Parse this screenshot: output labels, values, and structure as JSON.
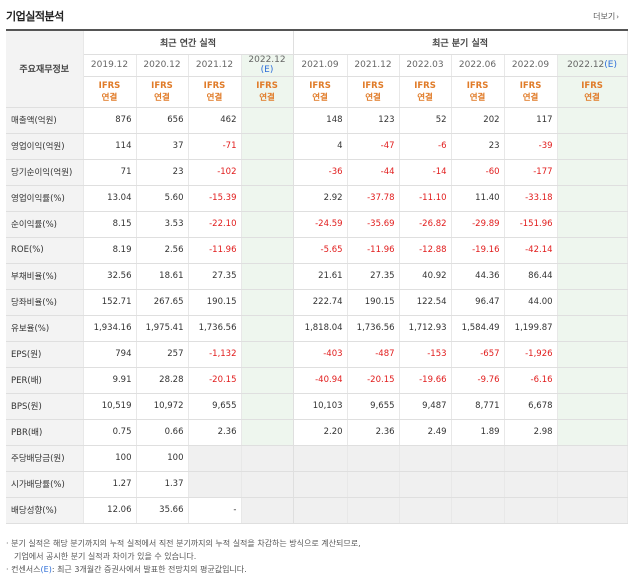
{
  "title": "기업실적분석",
  "more_label": "더보기",
  "header": {
    "label_col": "주요재무정보",
    "annual_group": "최근 연간 실적",
    "quarter_group": "최근 분기 실적",
    "annual_periods": [
      "2019.12",
      "2020.12",
      "2021.12",
      "2022.12"
    ],
    "annual_est_suffix": "(E)",
    "quarter_periods": [
      "2021.09",
      "2021.12",
      "2022.03",
      "2022.06",
      "2022.09",
      "2022.12"
    ],
    "quarter_est_suffix": "(E)",
    "ifrs_line1": "IFRS",
    "ifrs_line2": "연결"
  },
  "rows": [
    {
      "label": "매출액(억원)",
      "annual": [
        "876",
        "656",
        "462",
        ""
      ],
      "quarter": [
        "148",
        "123",
        "52",
        "202",
        "117",
        ""
      ]
    },
    {
      "label": "영업이익(억원)",
      "annual": [
        "114",
        "37",
        "-71",
        ""
      ],
      "quarter": [
        "4",
        "-47",
        "-6",
        "23",
        "-39",
        ""
      ]
    },
    {
      "label": "당기순이익(억원)",
      "annual": [
        "71",
        "23",
        "-102",
        ""
      ],
      "quarter": [
        "-36",
        "-44",
        "-14",
        "-60",
        "-177",
        ""
      ]
    },
    {
      "label": "영업이익률(%)",
      "annual": [
        "13.04",
        "5.60",
        "-15.39",
        ""
      ],
      "quarter": [
        "2.92",
        "-37.78",
        "-11.10",
        "11.40",
        "-33.18",
        ""
      ]
    },
    {
      "label": "순이익률(%)",
      "annual": [
        "8.15",
        "3.53",
        "-22.10",
        ""
      ],
      "quarter": [
        "-24.59",
        "-35.69",
        "-26.82",
        "-29.89",
        "-151.96",
        ""
      ]
    },
    {
      "label": "ROE(%)",
      "annual": [
        "8.19",
        "2.56",
        "-11.96",
        ""
      ],
      "quarter": [
        "-5.65",
        "-11.96",
        "-12.88",
        "-19.16",
        "-42.14",
        ""
      ]
    },
    {
      "label": "부채비율(%)",
      "annual": [
        "32.56",
        "18.61",
        "27.35",
        ""
      ],
      "quarter": [
        "21.61",
        "27.35",
        "40.92",
        "44.36",
        "86.44",
        ""
      ]
    },
    {
      "label": "당좌비율(%)",
      "annual": [
        "152.71",
        "267.65",
        "190.15",
        ""
      ],
      "quarter": [
        "222.74",
        "190.15",
        "122.54",
        "96.47",
        "44.00",
        ""
      ]
    },
    {
      "label": "유보율(%)",
      "annual": [
        "1,934.16",
        "1,975.41",
        "1,736.56",
        ""
      ],
      "quarter": [
        "1,818.04",
        "1,736.56",
        "1,712.93",
        "1,584.49",
        "1,199.87",
        ""
      ]
    },
    {
      "label": "EPS(원)",
      "annual": [
        "794",
        "257",
        "-1,132",
        ""
      ],
      "quarter": [
        "-403",
        "-487",
        "-153",
        "-657",
        "-1,926",
        ""
      ]
    },
    {
      "label": "PER(배)",
      "annual": [
        "9.91",
        "28.28",
        "-20.15",
        ""
      ],
      "quarter": [
        "-40.94",
        "-20.15",
        "-19.66",
        "-9.76",
        "-6.16",
        ""
      ]
    },
    {
      "label": "BPS(원)",
      "annual": [
        "10,519",
        "10,972",
        "9,655",
        ""
      ],
      "quarter": [
        "10,103",
        "9,655",
        "9,487",
        "8,771",
        "6,678",
        ""
      ]
    },
    {
      "label": "PBR(배)",
      "annual": [
        "0.75",
        "0.66",
        "2.36",
        ""
      ],
      "quarter": [
        "2.20",
        "2.36",
        "2.49",
        "1.89",
        "2.98",
        ""
      ]
    },
    {
      "label": "주당배당금(원)",
      "annual": [
        "100",
        "100",
        "",
        ""
      ],
      "quarter": [
        "",
        "",
        "",
        "",
        "",
        ""
      ]
    },
    {
      "label": "시가배당률(%)",
      "annual": [
        "1.27",
        "1.37",
        "",
        ""
      ],
      "quarter": [
        "",
        "",
        "",
        "",
        "",
        ""
      ]
    },
    {
      "label": "배당성향(%)",
      "annual": [
        "12.06",
        "35.66",
        "-",
        ""
      ],
      "quarter": [
        "",
        "",
        "",
        "",
        "",
        ""
      ]
    }
  ],
  "notes": {
    "line1": "· 분기 실적은 해당 분기까지의 누적 실적에서 직전 분기까지의 누적 실적을 차감하는 방식으로 계산되므로,",
    "line2": "기업에서 공시한 분기 실적과 차이가 있을 수 있습니다.",
    "line3_pre": "· 컨센서스",
    "line3_e": "(E)",
    "line3_post": ": 최근 3개월간 증권사에서 발표한 전망치의 평균값입니다."
  }
}
